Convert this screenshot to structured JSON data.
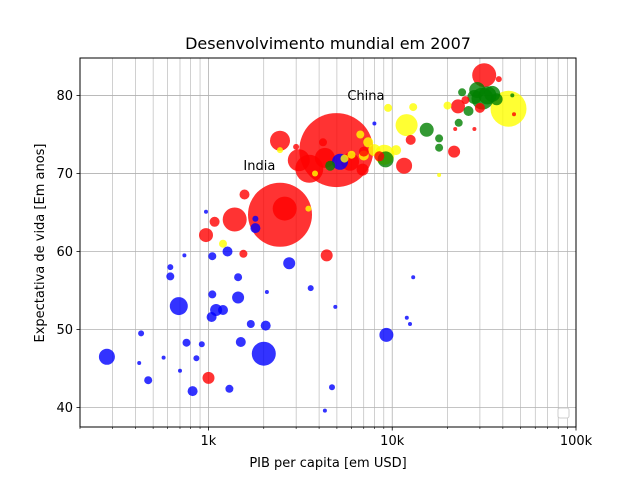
{
  "chart_data": {
    "type": "scatter",
    "title": "Desenvolvimento mundial em 2007",
    "xlabel": "PIB per capita [em USD]",
    "ylabel": "Expectativa de vida [Em anos]",
    "xscale": "log",
    "xlim": [
      200,
      100000
    ],
    "ylim": [
      37.5,
      84.8
    ],
    "grid": true,
    "legend": "lower right, empty",
    "x_ticks": [
      {
        "value": 1000,
        "label": "1k"
      },
      {
        "value": 10000,
        "label": "10k"
      },
      {
        "value": 100000,
        "label": "100k"
      }
    ],
    "y_ticks": [
      {
        "value": 40,
        "label": "40"
      },
      {
        "value": 50,
        "label": "50"
      },
      {
        "value": 60,
        "label": "60"
      },
      {
        "value": 70,
        "label": "70"
      },
      {
        "value": 80,
        "label": "80"
      }
    ],
    "annotations": [
      {
        "text": "China",
        "x": 5700,
        "y": 80
      },
      {
        "text": "India",
        "x": 1550,
        "y": 71
      }
    ],
    "colors": {
      "red": "#ff0000",
      "blue": "#0000ff",
      "green": "#008000",
      "yellow": "#ffff00"
    },
    "points": [
      {
        "x": 4960,
        "y": 73.0,
        "r": 37,
        "color": "red"
      },
      {
        "x": 2450,
        "y": 64.7,
        "r": 32,
        "color": "red"
      },
      {
        "x": 42950,
        "y": 78.3,
        "r": 18,
        "color": "yellow"
      },
      {
        "x": 3540,
        "y": 70.6,
        "r": 14,
        "color": "red"
      },
      {
        "x": 9070,
        "y": 72.4,
        "r": 10,
        "color": "yellow"
      },
      {
        "x": 2600,
        "y": 65.5,
        "r": 12,
        "color": "red"
      },
      {
        "x": 1390,
        "y": 64.1,
        "r": 12,
        "color": "red"
      },
      {
        "x": 3100,
        "y": 71.7,
        "r": 11,
        "color": "red"
      },
      {
        "x": 31660,
        "y": 82.6,
        "r": 12,
        "color": "red"
      },
      {
        "x": 2000,
        "y": 46.9,
        "r": 12,
        "color": "blue"
      },
      {
        "x": 2450,
        "y": 74.2,
        "r": 10,
        "color": "red"
      },
      {
        "x": 11980,
        "y": 76.2,
        "r": 11,
        "color": "yellow"
      },
      {
        "x": 4300,
        "y": 72.0,
        "r": 10,
        "color": "red"
      },
      {
        "x": 280,
        "y": 46.5,
        "r": 8,
        "color": "blue"
      },
      {
        "x": 690,
        "y": 53.0,
        "r": 9,
        "color": "blue"
      },
      {
        "x": 5900,
        "y": 71.5,
        "r": 9,
        "color": "red"
      },
      {
        "x": 5200,
        "y": 71.5,
        "r": 8,
        "color": "blue"
      },
      {
        "x": 31000,
        "y": 79.6,
        "r": 11,
        "color": "green"
      },
      {
        "x": 33000,
        "y": 80.0,
        "r": 9,
        "color": "green"
      },
      {
        "x": 35000,
        "y": 80.2,
        "r": 8,
        "color": "green"
      },
      {
        "x": 29000,
        "y": 80.7,
        "r": 8,
        "color": "green"
      },
      {
        "x": 28000,
        "y": 79.8,
        "r": 7,
        "color": "green"
      },
      {
        "x": 9200,
        "y": 71.8,
        "r": 8,
        "color": "green"
      },
      {
        "x": 11600,
        "y": 71.0,
        "r": 8,
        "color": "red"
      },
      {
        "x": 15400,
        "y": 75.6,
        "r": 7,
        "color": "green"
      },
      {
        "x": 1450,
        "y": 54.1,
        "r": 6,
        "color": "blue"
      },
      {
        "x": 9300,
        "y": 49.3,
        "r": 7,
        "color": "blue"
      },
      {
        "x": 4400,
        "y": 59.5,
        "r": 6,
        "color": "red"
      },
      {
        "x": 970,
        "y": 62.1,
        "r": 7,
        "color": "red"
      },
      {
        "x": 22800,
        "y": 78.6,
        "r": 7,
        "color": "red"
      },
      {
        "x": 21700,
        "y": 72.8,
        "r": 6,
        "color": "red"
      },
      {
        "x": 2750,
        "y": 58.5,
        "r": 6,
        "color": "blue"
      },
      {
        "x": 1100,
        "y": 52.5,
        "r": 6,
        "color": "blue"
      },
      {
        "x": 1000,
        "y": 43.8,
        "r": 6,
        "color": "red"
      },
      {
        "x": 1270,
        "y": 60.0,
        "r": 5,
        "color": "blue"
      },
      {
        "x": 1570,
        "y": 67.3,
        "r": 5,
        "color": "red"
      },
      {
        "x": 1080,
        "y": 63.8,
        "r": 5,
        "color": "red"
      },
      {
        "x": 12600,
        "y": 74.3,
        "r": 5,
        "color": "red"
      },
      {
        "x": 6900,
        "y": 70.5,
        "r": 6,
        "color": "red"
      },
      {
        "x": 8000,
        "y": 73.0,
        "r": 6,
        "color": "yellow"
      },
      {
        "x": 7000,
        "y": 72.3,
        "r": 5,
        "color": "yellow"
      },
      {
        "x": 8500,
        "y": 72.2,
        "r": 5,
        "color": "red"
      },
      {
        "x": 7400,
        "y": 74.0,
        "r": 5,
        "color": "yellow"
      },
      {
        "x": 10500,
        "y": 73.0,
        "r": 5,
        "color": "yellow"
      },
      {
        "x": 6700,
        "y": 75.0,
        "r": 4,
        "color": "yellow"
      },
      {
        "x": 13000,
        "y": 78.5,
        "r": 4,
        "color": "yellow"
      },
      {
        "x": 9500,
        "y": 78.4,
        "r": 4,
        "color": "yellow"
      },
      {
        "x": 4200,
        "y": 74.0,
        "r": 4,
        "color": "red"
      },
      {
        "x": 6000,
        "y": 72.4,
        "r": 4,
        "color": "yellow"
      },
      {
        "x": 26000,
        "y": 78.0,
        "r": 5,
        "color": "green"
      },
      {
        "x": 37000,
        "y": 79.5,
        "r": 6,
        "color": "green"
      },
      {
        "x": 18000,
        "y": 74.5,
        "r": 4,
        "color": "green"
      },
      {
        "x": 20000,
        "y": 78.7,
        "r": 4,
        "color": "yellow"
      },
      {
        "x": 23000,
        "y": 76.5,
        "r": 4,
        "color": "green"
      },
      {
        "x": 25000,
        "y": 79.4,
        "r": 4,
        "color": "red"
      },
      {
        "x": 18000,
        "y": 73.3,
        "r": 4,
        "color": "green"
      },
      {
        "x": 30000,
        "y": 78.4,
        "r": 5,
        "color": "red"
      },
      {
        "x": 38000,
        "y": 82.1,
        "r": 3,
        "color": "red"
      },
      {
        "x": 24000,
        "y": 80.4,
        "r": 4,
        "color": "green"
      },
      {
        "x": 1200,
        "y": 52.5,
        "r": 5,
        "color": "blue"
      },
      {
        "x": 1040,
        "y": 51.6,
        "r": 5,
        "color": "blue"
      },
      {
        "x": 1800,
        "y": 63.0,
        "r": 5,
        "color": "blue"
      },
      {
        "x": 2050,
        "y": 50.5,
        "r": 5,
        "color": "blue"
      },
      {
        "x": 1500,
        "y": 48.4,
        "r": 5,
        "color": "blue"
      },
      {
        "x": 1700,
        "y": 50.7,
        "r": 4,
        "color": "blue"
      },
      {
        "x": 1450,
        "y": 56.7,
        "r": 4,
        "color": "blue"
      },
      {
        "x": 1300,
        "y": 42.4,
        "r": 4,
        "color": "blue"
      },
      {
        "x": 820,
        "y": 42.1,
        "r": 5,
        "color": "blue"
      },
      {
        "x": 470,
        "y": 43.5,
        "r": 4,
        "color": "blue"
      },
      {
        "x": 430,
        "y": 49.5,
        "r": 3,
        "color": "blue"
      },
      {
        "x": 620,
        "y": 56.8,
        "r": 4,
        "color": "blue"
      },
      {
        "x": 760,
        "y": 48.3,
        "r": 4,
        "color": "blue"
      },
      {
        "x": 860,
        "y": 46.3,
        "r": 3,
        "color": "blue"
      },
      {
        "x": 1050,
        "y": 54.5,
        "r": 4,
        "color": "blue"
      },
      {
        "x": 620,
        "y": 58.0,
        "r": 3,
        "color": "blue"
      },
      {
        "x": 1050,
        "y": 59.4,
        "r": 4,
        "color": "blue"
      },
      {
        "x": 920,
        "y": 48.1,
        "r": 3,
        "color": "blue"
      },
      {
        "x": 1800,
        "y": 64.2,
        "r": 3,
        "color": "blue"
      },
      {
        "x": 4700,
        "y": 42.6,
        "r": 3,
        "color": "blue"
      },
      {
        "x": 3600,
        "y": 55.3,
        "r": 3,
        "color": "blue"
      },
      {
        "x": 4600,
        "y": 71.0,
        "r": 5,
        "color": "green"
      },
      {
        "x": 7000,
        "y": 72.8,
        "r": 5,
        "color": "red"
      },
      {
        "x": 5500,
        "y": 71.9,
        "r": 4,
        "color": "yellow"
      },
      {
        "x": 3800,
        "y": 70.0,
        "r": 3,
        "color": "yellow"
      },
      {
        "x": 3500,
        "y": 65.5,
        "r": 3,
        "color": "yellow"
      },
      {
        "x": 1200,
        "y": 61.0,
        "r": 4,
        "color": "yellow"
      },
      {
        "x": 1550,
        "y": 59.7,
        "r": 4,
        "color": "red"
      },
      {
        "x": 2450,
        "y": 73.0,
        "r": 3,
        "color": "yellow"
      },
      {
        "x": 3000,
        "y": 73.4,
        "r": 3,
        "color": "red"
      },
      {
        "x": 13000,
        "y": 56.7,
        "r": 2,
        "color": "blue"
      },
      {
        "x": 12500,
        "y": 50.7,
        "r": 2,
        "color": "blue"
      },
      {
        "x": 4900,
        "y": 52.9,
        "r": 2,
        "color": "blue"
      },
      {
        "x": 4300,
        "y": 39.6,
        "r": 2,
        "color": "blue"
      },
      {
        "x": 570,
        "y": 46.4,
        "r": 2,
        "color": "blue"
      },
      {
        "x": 420,
        "y": 45.7,
        "r": 2,
        "color": "blue"
      },
      {
        "x": 700,
        "y": 44.7,
        "r": 2,
        "color": "blue"
      },
      {
        "x": 970,
        "y": 65.1,
        "r": 2,
        "color": "blue"
      },
      {
        "x": 2080,
        "y": 54.8,
        "r": 2,
        "color": "blue"
      },
      {
        "x": 8000,
        "y": 76.4,
        "r": 2,
        "color": "blue"
      },
      {
        "x": 12000,
        "y": 51.5,
        "r": 2,
        "color": "blue"
      },
      {
        "x": 740,
        "y": 59.5,
        "r": 2,
        "color": "blue"
      },
      {
        "x": 18000,
        "y": 69.8,
        "r": 2,
        "color": "yellow"
      },
      {
        "x": 22000,
        "y": 75.7,
        "r": 2,
        "color": "red"
      },
      {
        "x": 46000,
        "y": 77.6,
        "r": 2,
        "color": "red"
      },
      {
        "x": 28000,
        "y": 75.7,
        "r": 2,
        "color": "red"
      },
      {
        "x": 45000,
        "y": 80.0,
        "r": 2,
        "color": "green"
      }
    ]
  }
}
